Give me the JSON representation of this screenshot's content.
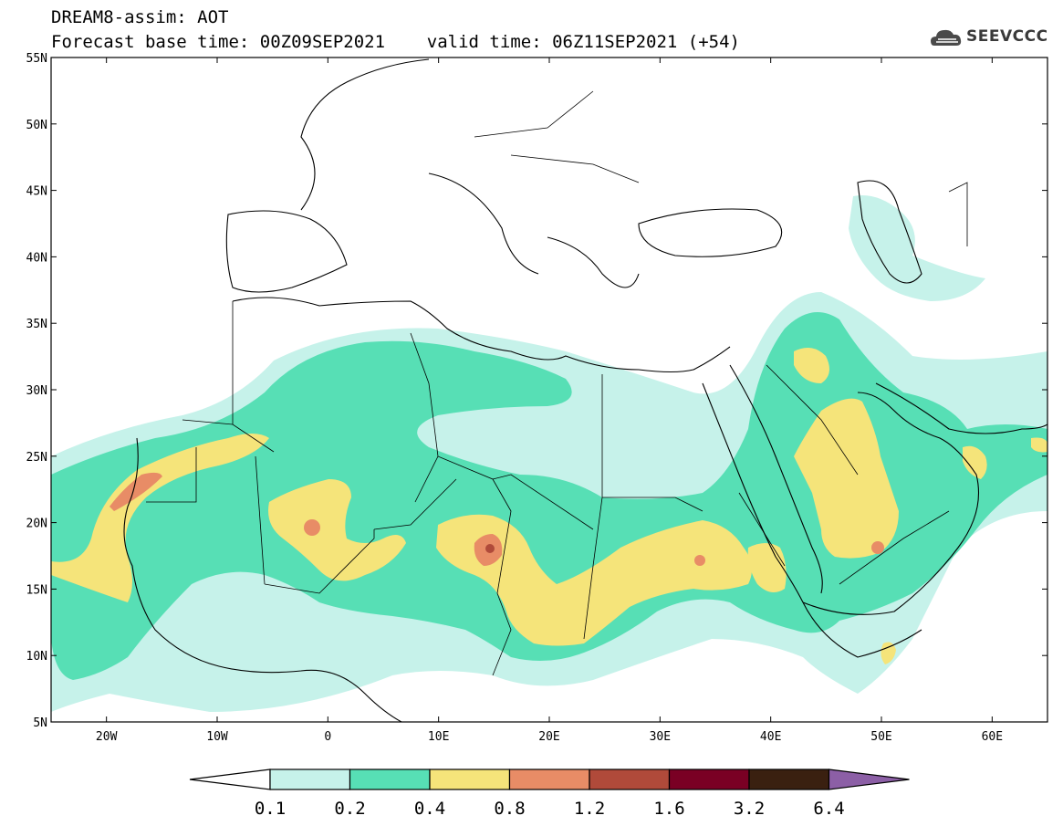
{
  "header": {
    "line1": "DREAM8-assim: AOT",
    "line2": "Forecast base time: 00Z09SEP2021    valid time: 06Z11SEP2021 (+54)"
  },
  "logo": {
    "text": "SEEVCCC",
    "icon": "cloud-icon",
    "color": "#3a3a3a"
  },
  "map": {
    "lat_ticks": [
      "55N",
      "50N",
      "45N",
      "40N",
      "35N",
      "30N",
      "25N",
      "20N",
      "15N",
      "10N",
      "5N"
    ],
    "lon_ticks": [
      "20W",
      "10W",
      "0",
      "10E",
      "20E",
      "30E",
      "40E",
      "50E",
      "60E"
    ],
    "lon_range": [
      -25,
      65
    ],
    "lat_range": [
      5,
      55
    ]
  },
  "colorbar": {
    "labels": [
      "0.1",
      "0.2",
      "0.4",
      "0.8",
      "1.2",
      "1.6",
      "3.2",
      "6.4"
    ],
    "colors": [
      "#ffffff",
      "#c6f2ea",
      "#57dfb5",
      "#f5e47a",
      "#e88c66",
      "#b04a3a",
      "#7a0024",
      "#3a2010",
      "#8c5fa6"
    ]
  }
}
